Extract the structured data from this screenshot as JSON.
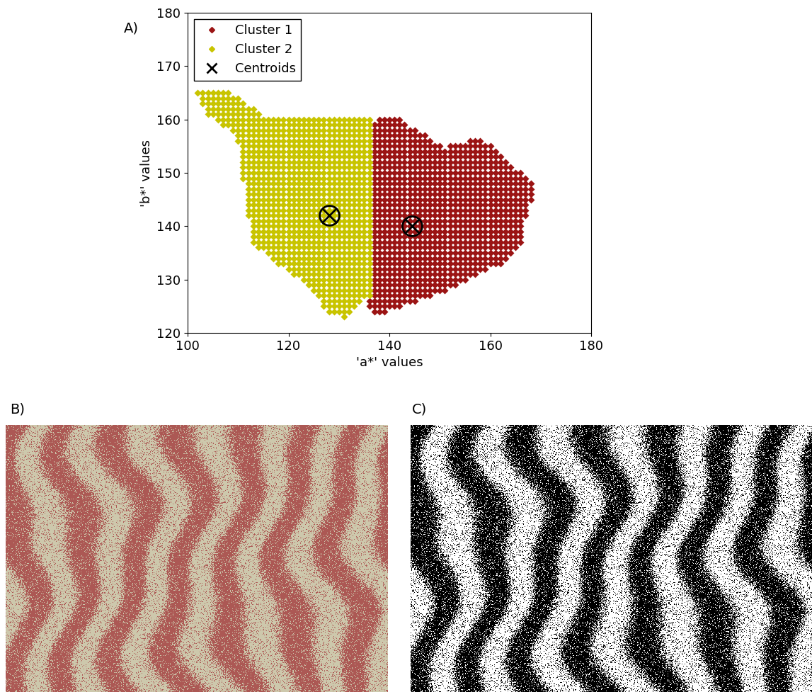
{
  "chart_data": {
    "type": "scatter",
    "x_label": "'a*' values",
    "y_label": "'b*' values",
    "xlim": [
      100,
      180
    ],
    "ylim": [
      120,
      180
    ],
    "xticks": [
      100,
      120,
      140,
      160,
      180
    ],
    "yticks": [
      120,
      130,
      140,
      150,
      160,
      170,
      180
    ],
    "legend": "upper left",
    "series": [
      {
        "name": "Cluster 1",
        "color": "#9b1414",
        "marker": "diamond",
        "region": [
          [
            136,
            160
          ],
          [
            141,
            161
          ],
          [
            146,
            158
          ],
          [
            151,
            155
          ],
          [
            158,
            157
          ],
          [
            162,
            154
          ],
          [
            164,
            152
          ],
          [
            168,
            149
          ],
          [
            169,
            146
          ],
          [
            167,
            141
          ],
          [
            167,
            137
          ],
          [
            163,
            133
          ],
          [
            158,
            131
          ],
          [
            152,
            128
          ],
          [
            146,
            126
          ],
          [
            141,
            124
          ],
          [
            137,
            123
          ],
          [
            135,
            126
          ],
          [
            136,
            127
          ]
        ]
      },
      {
        "name": "Cluster 2",
        "color": "#c8c400",
        "marker": "diamond",
        "region": [
          [
            136,
            160
          ],
          [
            116,
            160
          ],
          [
            108,
            165
          ],
          [
            102,
            165
          ],
          [
            104,
            161
          ],
          [
            110,
            157
          ],
          [
            111,
            150
          ],
          [
            112,
            143
          ],
          [
            113,
            137
          ],
          [
            118,
            133
          ],
          [
            124,
            129
          ],
          [
            128,
            124
          ],
          [
            131,
            123
          ],
          [
            134,
            126
          ],
          [
            136,
            127
          ]
        ]
      },
      {
        "name": "Centroids",
        "color": "#000000",
        "marker": "x",
        "x": [
          144.5,
          128
        ],
        "y": [
          140,
          142
        ]
      }
    ]
  },
  "panel_labels": [
    "A)",
    "B)",
    "C)"
  ]
}
